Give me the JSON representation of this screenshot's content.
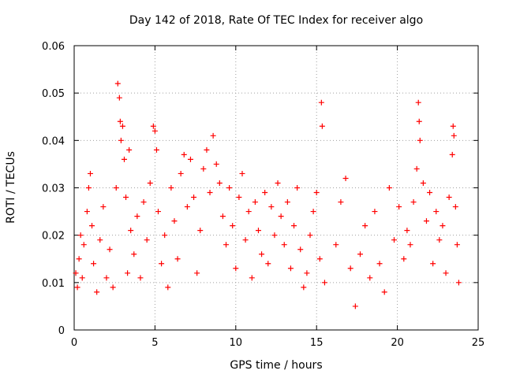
{
  "chart_data": {
    "type": "scatter",
    "title": "Day 142 of 2018, Rate Of TEC Index for receiver algo",
    "xlabel": "GPS time / hours",
    "ylabel": "ROTI / TECUs",
    "xlim": [
      0,
      25
    ],
    "ylim": [
      0,
      0.06
    ],
    "xticks": [
      "0",
      "5",
      "10",
      "15",
      "20",
      "25"
    ],
    "yticks": [
      "0",
      "0.01",
      "0.02",
      "0.03",
      "0.04",
      "0.05",
      "0.06"
    ],
    "grid": true,
    "marker": "+",
    "color": "#ff0000",
    "series": [
      {
        "points": [
          [
            0.1,
            0.012
          ],
          [
            0.2,
            0.009
          ],
          [
            0.3,
            0.015
          ],
          [
            0.4,
            0.02
          ],
          [
            0.5,
            0.011
          ],
          [
            0.6,
            0.018
          ],
          [
            0.8,
            0.025
          ],
          [
            0.9,
            0.03
          ],
          [
            1.0,
            0.033
          ],
          [
            1.1,
            0.022
          ],
          [
            1.2,
            0.014
          ],
          [
            1.4,
            0.008
          ],
          [
            1.6,
            0.019
          ],
          [
            1.8,
            0.026
          ],
          [
            2.0,
            0.011
          ],
          [
            2.2,
            0.017
          ],
          [
            2.4,
            0.009
          ],
          [
            2.6,
            0.03
          ],
          [
            2.7,
            0.052
          ],
          [
            2.8,
            0.049
          ],
          [
            2.85,
            0.044
          ],
          [
            2.9,
            0.04
          ],
          [
            3.0,
            0.043
          ],
          [
            3.1,
            0.036
          ],
          [
            3.2,
            0.028
          ],
          [
            3.3,
            0.012
          ],
          [
            3.4,
            0.038
          ],
          [
            3.5,
            0.021
          ],
          [
            3.7,
            0.016
          ],
          [
            3.9,
            0.024
          ],
          [
            4.1,
            0.011
          ],
          [
            4.3,
            0.027
          ],
          [
            4.5,
            0.019
          ],
          [
            4.7,
            0.031
          ],
          [
            4.9,
            0.043
          ],
          [
            5.0,
            0.042
          ],
          [
            5.1,
            0.038
          ],
          [
            5.2,
            0.025
          ],
          [
            5.4,
            0.014
          ],
          [
            5.6,
            0.02
          ],
          [
            5.8,
            0.009
          ],
          [
            6.0,
            0.03
          ],
          [
            6.2,
            0.023
          ],
          [
            6.4,
            0.015
          ],
          [
            6.6,
            0.033
          ],
          [
            6.8,
            0.037
          ],
          [
            7.0,
            0.026
          ],
          [
            7.2,
            0.036
          ],
          [
            7.4,
            0.028
          ],
          [
            7.6,
            0.012
          ],
          [
            7.8,
            0.021
          ],
          [
            8.0,
            0.034
          ],
          [
            8.2,
            0.038
          ],
          [
            8.4,
            0.029
          ],
          [
            8.6,
            0.041
          ],
          [
            8.8,
            0.035
          ],
          [
            9.0,
            0.031
          ],
          [
            9.2,
            0.024
          ],
          [
            9.4,
            0.018
          ],
          [
            9.6,
            0.03
          ],
          [
            9.8,
            0.022
          ],
          [
            10.0,
            0.013
          ],
          [
            10.2,
            0.028
          ],
          [
            10.4,
            0.033
          ],
          [
            10.6,
            0.019
          ],
          [
            10.8,
            0.025
          ],
          [
            11.0,
            0.011
          ],
          [
            11.2,
            0.027
          ],
          [
            11.4,
            0.021
          ],
          [
            11.6,
            0.016
          ],
          [
            11.8,
            0.029
          ],
          [
            12.0,
            0.014
          ],
          [
            12.2,
            0.026
          ],
          [
            12.4,
            0.02
          ],
          [
            12.6,
            0.031
          ],
          [
            12.8,
            0.024
          ],
          [
            13.0,
            0.018
          ],
          [
            13.2,
            0.027
          ],
          [
            13.4,
            0.013
          ],
          [
            13.6,
            0.022
          ],
          [
            13.8,
            0.03
          ],
          [
            14.0,
            0.017
          ],
          [
            14.2,
            0.009
          ],
          [
            14.4,
            0.012
          ],
          [
            14.6,
            0.02
          ],
          [
            14.8,
            0.025
          ],
          [
            15.0,
            0.029
          ],
          [
            15.2,
            0.015
          ],
          [
            15.3,
            0.048
          ],
          [
            15.35,
            0.043
          ],
          [
            15.5,
            0.01
          ],
          [
            16.2,
            0.018
          ],
          [
            16.5,
            0.027
          ],
          [
            16.8,
            0.032
          ],
          [
            17.1,
            0.013
          ],
          [
            17.4,
            0.005
          ],
          [
            17.7,
            0.016
          ],
          [
            18.0,
            0.022
          ],
          [
            18.3,
            0.011
          ],
          [
            18.6,
            0.025
          ],
          [
            18.9,
            0.014
          ],
          [
            19.2,
            0.008
          ],
          [
            19.5,
            0.03
          ],
          [
            19.8,
            0.019
          ],
          [
            20.1,
            0.026
          ],
          [
            20.4,
            0.015
          ],
          [
            20.6,
            0.021
          ],
          [
            20.8,
            0.018
          ],
          [
            21.0,
            0.027
          ],
          [
            21.2,
            0.034
          ],
          [
            21.3,
            0.048
          ],
          [
            21.35,
            0.044
          ],
          [
            21.4,
            0.04
          ],
          [
            21.6,
            0.031
          ],
          [
            21.8,
            0.023
          ],
          [
            22.0,
            0.029
          ],
          [
            22.2,
            0.014
          ],
          [
            22.4,
            0.025
          ],
          [
            22.6,
            0.019
          ],
          [
            22.8,
            0.022
          ],
          [
            23.0,
            0.012
          ],
          [
            23.2,
            0.028
          ],
          [
            23.4,
            0.037
          ],
          [
            23.45,
            0.043
          ],
          [
            23.5,
            0.041
          ],
          [
            23.6,
            0.026
          ],
          [
            23.7,
            0.018
          ],
          [
            23.8,
            0.01
          ]
        ]
      }
    ]
  }
}
